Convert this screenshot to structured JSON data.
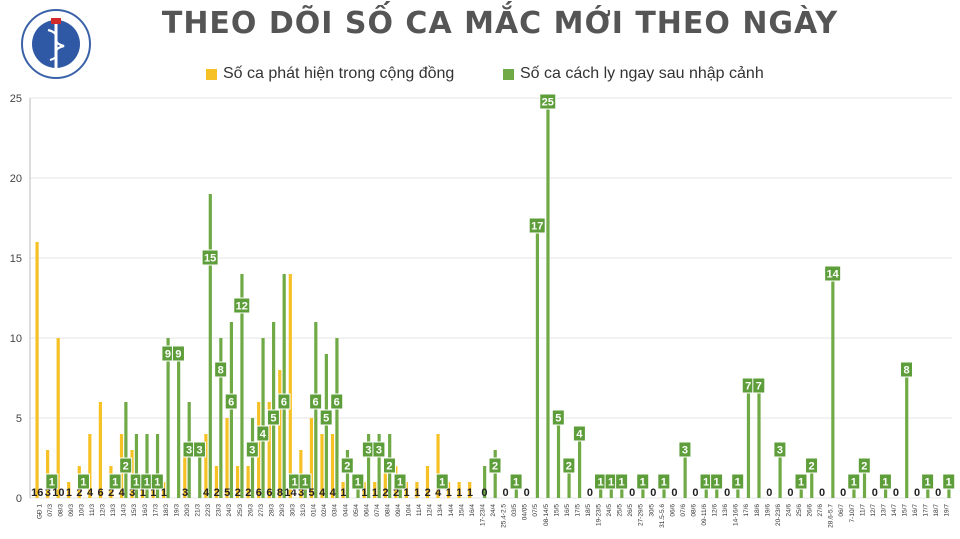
{
  "title": "THEO DÕI SỐ CA MẮC MỚI THEO NGÀY",
  "logo": {
    "top_text": "BỘ Y TẾ",
    "bottom_text": "MINISTRY OF HEALTH"
  },
  "colors": {
    "community": "#F5C125",
    "quarantine": "#6FAA46",
    "label_bg": "#5E9E3A",
    "grid": "#E4E4E4",
    "title": "#555555"
  },
  "chart_data": {
    "type": "bar",
    "stacked": false,
    "ylim": [
      0,
      25
    ],
    "yticks": [
      0,
      5,
      10,
      15,
      20,
      25
    ],
    "grid": true,
    "legend_position": "top",
    "categories": [
      "GĐ 1",
      "07/3",
      "08/3",
      "09/3",
      "10/3",
      "11/3",
      "12/3",
      "13/3",
      "14/3",
      "15/3",
      "16/3",
      "17/3",
      "18/3",
      "19/3",
      "20/3",
      "21/3",
      "22/3",
      "23/3",
      "24/3",
      "25/3",
      "26/3",
      "27/3",
      "28/3",
      "29/3",
      "30/3",
      "31/3",
      "01/4",
      "02/4",
      "03/4",
      "04/4",
      "05/4",
      "06/4",
      "07/4",
      "08/4",
      "09/4",
      "10/4",
      "11/4",
      "12/4",
      "13/4",
      "14/4",
      "15/4",
      "16/4",
      "17-23/4",
      "24/4",
      "25.4-2.5",
      "03/5",
      "04/05",
      "07/5",
      "08-14/5",
      "15/5",
      "16/5",
      "17/5",
      "18/5",
      "19-23/5",
      "24/5",
      "25/5",
      "26/5",
      "27-29/5",
      "30/5",
      "31.5-5.6",
      "06/6",
      "07/6",
      "08/6",
      "09-11/6",
      "12/6",
      "13/6",
      "14-16/6",
      "17/6",
      "18/6",
      "19/6",
      "20-23/6",
      "24/6",
      "25/6",
      "26/6",
      "27/6",
      "28.6-5.7",
      "06/7",
      "7-10/7",
      "11/7",
      "12/7",
      "13/7",
      "14/7",
      "15/7",
      "16/7",
      "17/7",
      "18/7",
      "19/7"
    ],
    "series": [
      {
        "name": "Số ca phát hiện trong cộng đồng",
        "color": "#F5C125",
        "values": [
          16,
          3,
          10,
          1,
          2,
          4,
          6,
          2,
          4,
          3,
          1,
          1,
          1,
          0,
          3,
          0,
          4,
          2,
          5,
          2,
          2,
          6,
          6,
          8,
          14,
          3,
          5,
          4,
          4,
          1,
          0,
          1,
          1,
          2,
          2,
          1,
          1,
          2,
          4,
          1,
          1,
          1,
          0,
          0,
          0,
          0,
          0,
          0,
          0,
          0,
          0,
          0,
          0,
          0,
          0,
          0,
          0,
          0,
          0,
          0,
          0,
          0,
          0,
          0,
          0,
          0,
          0,
          0,
          0,
          0,
          0,
          0,
          0,
          0,
          0,
          0,
          0,
          0,
          0,
          0,
          0,
          0,
          0,
          0,
          0,
          0,
          0
        ],
        "labels": [
          "16",
          "3",
          "10",
          "1",
          "2",
          "4",
          "6",
          "2",
          "4",
          "3",
          "1",
          "1",
          "1",
          "",
          "3",
          "",
          "4",
          "2",
          "5",
          "2",
          "2",
          "6",
          "6",
          "8",
          "14",
          "3",
          "5",
          "4",
          "4",
          "1",
          "",
          "1",
          "1",
          "2",
          "2",
          "1",
          "1",
          "2",
          "4",
          "1",
          "1",
          "1",
          "",
          "",
          "",
          "",
          "",
          "",
          "",
          "",
          "",
          "",
          "",
          "",
          "",
          "",
          "",
          "",
          "",
          "",
          "",
          "",
          "",
          "",
          "",
          "",
          "",
          "",
          "",
          "",
          "",
          "",
          "",
          "",
          "",
          "",
          "",
          "",
          "",
          "",
          "",
          "",
          "",
          "",
          "",
          "",
          ""
        ]
      },
      {
        "name": "Số ca cách ly ngay sau nhập cảnh",
        "color": "#6FAA46",
        "values": [
          0,
          1,
          0,
          0,
          1,
          0,
          0,
          1,
          2,
          1,
          1,
          1,
          9,
          9,
          3,
          3,
          15,
          8,
          6,
          12,
          3,
          4,
          5,
          6,
          1,
          1,
          6,
          5,
          6,
          2,
          1,
          3,
          3,
          2,
          1,
          0,
          0,
          0,
          1,
          0,
          0,
          0,
          0,
          2,
          0,
          1,
          0,
          17,
          25,
          5,
          2,
          4,
          0,
          1,
          1,
          1,
          0,
          1,
          0,
          1,
          0,
          3,
          0,
          1,
          1,
          0,
          1,
          7,
          7,
          0,
          3,
          0,
          1,
          2,
          0,
          14,
          0,
          1,
          2,
          0,
          1,
          0,
          8,
          0,
          1,
          0,
          1
        ],
        "labels": [
          "",
          "1",
          "",
          "",
          "1",
          "",
          "",
          "1",
          "2",
          "1",
          "1",
          "1",
          "9",
          "9",
          "3",
          "3",
          "15",
          "8",
          "6",
          "12",
          "3",
          "4",
          "5",
          "6",
          "1",
          "1",
          "6",
          "5",
          "6",
          "2",
          "1",
          "3",
          "3",
          "2",
          "1",
          "",
          "",
          "",
          "1",
          "",
          "",
          "",
          "0",
          "2",
          "0",
          "1",
          "0",
          "17",
          "25",
          "5",
          "2",
          "4",
          "0",
          "1",
          "1",
          "1",
          "0",
          "1",
          "0",
          "1",
          "0",
          "3",
          "0",
          "1",
          "1",
          "0",
          "1",
          "7",
          "7",
          "0",
          "3",
          "0",
          "1",
          "2",
          "0",
          "14",
          "0",
          "1",
          "2",
          "0",
          "1",
          "0",
          "8",
          "0",
          "1",
          "0",
          "1"
        ],
        "peaks": [
          0,
          0,
          0,
          0,
          0,
          0,
          0,
          0,
          6,
          4,
          4,
          4,
          10,
          9,
          6,
          3,
          19,
          10,
          11,
          14,
          5,
          10,
          11,
          14,
          0,
          1,
          11,
          9,
          10,
          3,
          1,
          4,
          4,
          4,
          1,
          0,
          0,
          0,
          0,
          0,
          0,
          0,
          2,
          3,
          0,
          1,
          0,
          17,
          25,
          5,
          2,
          4,
          0,
          1,
          1,
          1,
          0,
          1,
          0,
          1,
          0,
          3,
          0,
          1,
          1,
          0,
          1,
          7,
          7,
          0,
          3,
          0,
          1,
          2,
          0,
          14,
          0,
          1,
          2,
          0,
          1,
          0,
          8,
          0,
          1,
          0,
          1
        ]
      }
    ]
  }
}
